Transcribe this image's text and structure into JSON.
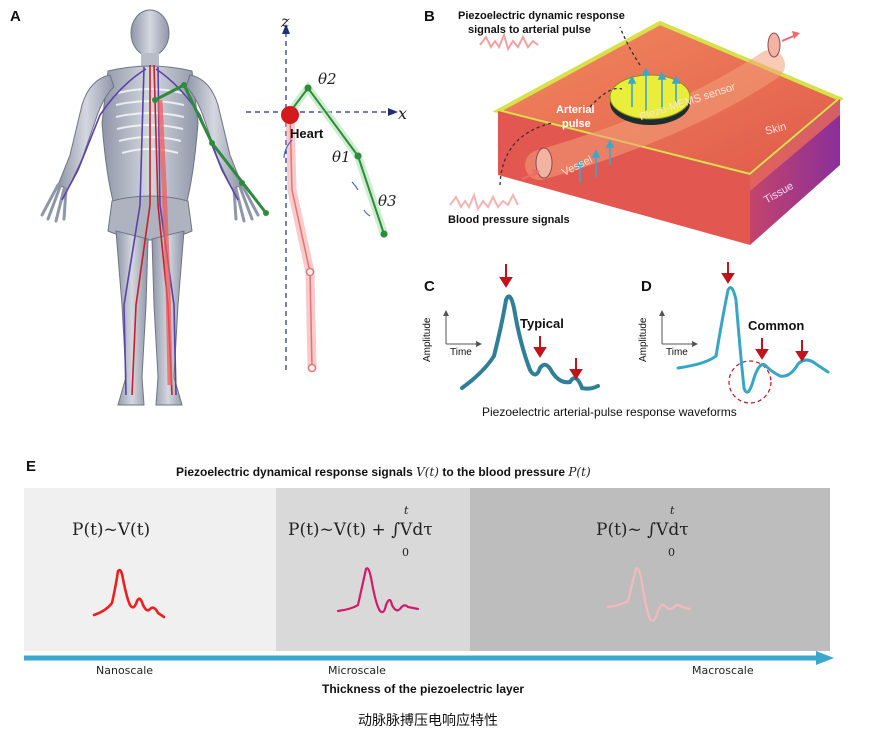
{
  "panels": {
    "a": {
      "label": "A",
      "axis_z": "z",
      "axis_x": "x",
      "theta1": "θ1",
      "theta2": "θ2",
      "theta3": "θ3",
      "heart": "Heart"
    },
    "b": {
      "label": "B",
      "title_line1": "Piezoelectric dynamic response",
      "title_line2": "signals to arterial pulse",
      "arterial_pulse_line1": "Arterial",
      "arterial_pulse_line2": "pulse",
      "sensor": "Piezo-MEMS sensor",
      "skin": "Skin",
      "vessel": "Vessel",
      "tissue": "Tissue",
      "blood_pressure": "Blood pressure signals"
    },
    "c": {
      "label": "C",
      "amplitude": "Amplitude",
      "time": "Time",
      "waveform_label": "Typical"
    },
    "d": {
      "label": "D",
      "amplitude": "Amplitude",
      "time": "Time",
      "waveform_label": "Common"
    },
    "cd_caption": "Piezoelectric arterial-pulse response waveforms",
    "e": {
      "label": "E",
      "title_prefix": "Piezoelectric dynamical response signals",
      "title_v": "V(t)",
      "title_mid": "to the blood pressure",
      "title_p": "P(t)",
      "regions": [
        {
          "formula": "P(t)~V(t)",
          "scale": "Nanoscale",
          "color": "#ef1f1f",
          "band": "#f0f0f0"
        },
        {
          "formula": "P(t)~V(t) + ∫Vdτ",
          "scale": "Microscale",
          "color": "#d21a6a",
          "band": "#d9d9d9"
        },
        {
          "formula": "P(t)~ ∫Vdτ",
          "scale": "Macroscale",
          "color": "#f4b8c0",
          "band": "#bdbdbd"
        }
      ],
      "integral_upper": "t",
      "integral_lower": "0",
      "axis_label": "Thickness of the piezoelectric layer"
    }
  },
  "caption": "动脉脉搏压电响应特性",
  "colors": {
    "teal": "#2f7f96",
    "cyan": "#37a6c6",
    "red": "#c0141a",
    "limb_green": "#2e8b3e",
    "arrow_blue": "#3aa7cf"
  }
}
